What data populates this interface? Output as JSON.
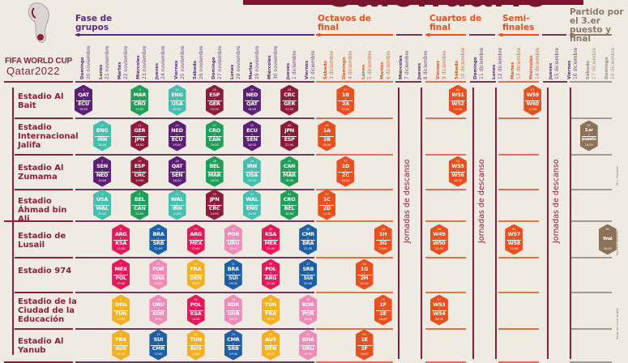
{
  "title": "Calendario",
  "brand": {
    "line1": "FIFA WORLD CUP",
    "line2": "Qatar2022"
  },
  "phases": [
    {
      "label": "Fase de grupos",
      "color": "#5b2a7a"
    },
    {
      "label": "Octavos de final",
      "color": "#e8501f"
    },
    {
      "label": "Cuartos de final",
      "color": "#e8501f"
    },
    {
      "label": "Semi-finales",
      "color": "#e8501f"
    },
    {
      "label": "Partido por el 3.er puesto y final",
      "color": "#8c7a66"
    }
  ],
  "days": [
    {
      "wd": "Domingo",
      "date": "20 noviembre"
    },
    {
      "wd": "Lunes",
      "date": "21 noviembre"
    },
    {
      "wd": "Martes",
      "date": "22 noviembre"
    },
    {
      "wd": "Miércoles",
      "date": "23 noviembre"
    },
    {
      "wd": "Jueves",
      "date": "24 noviembre"
    },
    {
      "wd": "Viernes",
      "date": "25 noviembre"
    },
    {
      "wd": "Sábado",
      "date": "26 noviembre"
    },
    {
      "wd": "Domingo",
      "date": "27 noviembre"
    },
    {
      "wd": "Lunes",
      "date": "28 noviembre"
    },
    {
      "wd": "Martes",
      "date": "29 noviembre"
    },
    {
      "wd": "Miércoles",
      "date": "30 noviembre"
    },
    {
      "wd": "Jueves",
      "date": "1 diciembre"
    },
    {
      "wd": "Viernes",
      "date": "2 diciembre"
    },
    {
      "wd": "Sábado",
      "date": "3 diciembre"
    },
    {
      "wd": "Domingo",
      "date": "4 diciembre"
    },
    {
      "wd": "Lunes",
      "date": "5 diciembre"
    },
    {
      "wd": "Martes",
      "date": "6 diciembre"
    },
    {
      "wd": "Miércoles",
      "date": "7 diciembre"
    },
    {
      "wd": "Jueves",
      "date": "8 diciembre"
    },
    {
      "wd": "Viernes",
      "date": "9 diciembre"
    },
    {
      "wd": "Sábado",
      "date": "10 diciembre"
    },
    {
      "wd": "Domingo",
      "date": "11 diciembre"
    },
    {
      "wd": "Lunes",
      "date": "12 diciembre"
    },
    {
      "wd": "Martes",
      "date": "13 diciembre"
    },
    {
      "wd": "Miércoles",
      "date": "14 diciembre"
    },
    {
      "wd": "Jueves",
      "date": "15 diciembre"
    },
    {
      "wd": "Viernes",
      "date": "16 diciembre"
    },
    {
      "wd": "Sábado",
      "date": "17 diciembre"
    },
    {
      "wd": "Domingo",
      "date": "18 diciembre"
    }
  ],
  "rest_label": "Jornadas de descanso",
  "notes": [
    "W = Ganador",
    "Sujeto a cambios",
    "Horas de inicio locales"
  ],
  "stadiums": [
    {
      "name": "Estadio Al Bait",
      "matches": [
        {
          "n": "1",
          "a": "QAT",
          "b": "ECU",
          "time": "19:00",
          "date": "20 noviembre",
          "color": "#5b1f74"
        },
        {
          "n": "12",
          "a": "MAR",
          "b": "CRO",
          "time": "13:00",
          "date": "23 noviembre",
          "color": "#1fa05a"
        },
        {
          "n": "20",
          "a": "ENG",
          "b": "USA",
          "time": "22:00",
          "date": "25 noviembre",
          "color": "#45bfae"
        },
        {
          "n": "28",
          "a": "ESP",
          "b": "GER",
          "time": "22:00",
          "date": "27 noviembre",
          "color": "#8c1a3a"
        },
        {
          "n": "36",
          "a": "NED",
          "b": "QAT",
          "time": "18:00",
          "date": "29 noviembre",
          "color": "#5b1f74"
        },
        {
          "n": "44",
          "a": "CRC",
          "b": "GER",
          "time": "22:00",
          "date": "1 diciembre",
          "color": "#8c1a3a"
        },
        {
          "n": "52",
          "a": "1B",
          "b": "2A",
          "time": "22:00",
          "date": "4 diciembre",
          "color": "#e8501f"
        },
        {
          "n": "60",
          "a": "W51",
          "b": "W52",
          "time": "22:00",
          "date": "10 diciembre",
          "color": "#e8501f"
        },
        {
          "n": "62",
          "a": "W59",
          "b": "W60",
          "time": "22:00",
          "date": "14 diciembre",
          "color": "#e8501f"
        }
      ]
    },
    {
      "name": "Estadio Internacional Jalifa",
      "matches": [
        {
          "n": "3",
          "a": "ENG",
          "b": "IRN",
          "time": "16:00",
          "date": "21 noviembre",
          "color": "#45bfae"
        },
        {
          "n": "11",
          "a": "GER",
          "b": "JPN",
          "time": "16:00",
          "date": "23 noviembre",
          "color": "#8c1a3a"
        },
        {
          "n": "19",
          "a": "NED",
          "b": "ECU",
          "time": "19:00",
          "date": "25 noviembre",
          "color": "#5b1f74"
        },
        {
          "n": "27",
          "a": "CRO",
          "b": "CAN",
          "time": "19:00",
          "date": "27 noviembre",
          "color": "#1fa05a"
        },
        {
          "n": "35",
          "a": "ECU",
          "b": "SEN",
          "time": "18:00",
          "date": "29 noviembre",
          "color": "#5b1f74"
        },
        {
          "n": "43",
          "a": "JPN",
          "b": "ESP",
          "time": "22:00",
          "date": "1 diciembre",
          "color": "#8c1a3a"
        },
        {
          "n": "49",
          "a": "1A",
          "b": "2B",
          "time": "18:00",
          "date": "3 diciembre",
          "color": "#e8501f"
        },
        {
          "n": "63",
          "a": "3.er",
          "b": "puesto",
          "time": "18:00",
          "date": "17 diciembre",
          "color": "#8c7256"
        }
      ]
    },
    {
      "name": "Estadio Al Zumama",
      "matches": [
        {
          "n": "2",
          "a": "SEN",
          "b": "NED",
          "time": "19:00",
          "date": "21 noviembre",
          "color": "#5b1f74"
        },
        {
          "n": "10",
          "a": "ESP",
          "b": "CRC",
          "time": "19:00",
          "date": "23 noviembre",
          "color": "#8c1a3a"
        },
        {
          "n": "18",
          "a": "QAT",
          "b": "SEN",
          "time": "16:00",
          "date": "25 noviembre",
          "color": "#5b1f74"
        },
        {
          "n": "26",
          "a": "BEL",
          "b": "MAR",
          "time": "16:00",
          "date": "27 noviembre",
          "color": "#1fa05a"
        },
        {
          "n": "34",
          "a": "IRN",
          "b": "USA",
          "time": "22:00",
          "date": "29 noviembre",
          "color": "#45bfae"
        },
        {
          "n": "42",
          "a": "CAN",
          "b": "MAR",
          "time": "18:00",
          "date": "1 diciembre",
          "color": "#1fa05a"
        },
        {
          "n": "51",
          "a": "1D",
          "b": "2C",
          "time": "18:00",
          "date": "4 diciembre",
          "color": "#e8501f"
        },
        {
          "n": "59",
          "a": "W55",
          "b": "W56",
          "time": "18:00",
          "date": "10 diciembre",
          "color": "#e8501f"
        }
      ]
    },
    {
      "name": "Estadio Áhmad bin Ali",
      "matches": [
        {
          "n": "4",
          "a": "USA",
          "b": "WAL",
          "time": "22:00",
          "date": "21 noviembre",
          "color": "#45bfae"
        },
        {
          "n": "9",
          "a": "BEL",
          "b": "CAN",
          "time": "22:00",
          "date": "23 noviembre",
          "color": "#1fa05a"
        },
        {
          "n": "17",
          "a": "WAL",
          "b": "IRN",
          "time": "13:00",
          "date": "25 noviembre",
          "color": "#45bfae"
        },
        {
          "n": "25",
          "a": "JPN",
          "b": "CRC",
          "time": "13:00",
          "date": "27 noviembre",
          "color": "#8c1a3a"
        },
        {
          "n": "33",
          "a": "WAL",
          "b": "ENG",
          "time": "22:00",
          "date": "29 noviembre",
          "color": "#45bfae"
        },
        {
          "n": "41",
          "a": "CRO",
          "b": "BEL",
          "time": "18:00",
          "date": "1 diciembre",
          "color": "#1fa05a"
        },
        {
          "n": "50",
          "a": "1C",
          "b": "2D",
          "time": "22:00",
          "date": "3 diciembre",
          "color": "#e8501f"
        }
      ]
    },
    {
      "name": "Estadio de Lusail",
      "matches": [
        {
          "n": "8",
          "a": "ARG",
          "b": "KSA",
          "time": "13:00",
          "date": "22 noviembre",
          "color": "#e5195a"
        },
        {
          "n": "16",
          "a": "BRA",
          "b": "SRB",
          "time": "22:00",
          "date": "24 noviembre",
          "color": "#1f5fa8"
        },
        {
          "n": "24",
          "a": "ARG",
          "b": "MEX",
          "time": "22:00",
          "date": "26 noviembre",
          "color": "#e5195a"
        },
        {
          "n": "32",
          "a": "POR",
          "b": "URU",
          "time": "22:00",
          "date": "28 noviembre",
          "color": "#ee8bb8"
        },
        {
          "n": "40",
          "a": "KSA",
          "b": "MEX",
          "time": "22:00",
          "date": "30 noviembre",
          "color": "#e5195a"
        },
        {
          "n": "48",
          "a": "CMR",
          "b": "BRA",
          "time": "22:00",
          "date": "2 diciembre",
          "color": "#1f5fa8"
        },
        {
          "n": "56",
          "a": "1H",
          "b": "2G",
          "time": "22:00",
          "date": "6 diciembre",
          "color": "#e8501f"
        },
        {
          "n": "58",
          "a": "W49",
          "b": "W50",
          "time": "22:00",
          "date": "9 diciembre",
          "color": "#e8501f"
        },
        {
          "n": "61",
          "a": "W57",
          "b": "W58",
          "time": "22:00",
          "date": "13 diciembre",
          "color": "#e8501f"
        },
        {
          "n": "64",
          "a": "final",
          "b": "",
          "time": "18:00",
          "date": "18 diciembre",
          "color": "#8c7256"
        }
      ]
    },
    {
      "name": "Estadio 974",
      "matches": [
        {
          "n": "7",
          "a": "MEX",
          "b": "POL",
          "time": "19:00",
          "date": "22 noviembre",
          "color": "#e5195a"
        },
        {
          "n": "15",
          "a": "POR",
          "b": "GHA",
          "time": "19:00",
          "date": "24 noviembre",
          "color": "#ee8bb8"
        },
        {
          "n": "23",
          "a": "FRA",
          "b": "DEN",
          "time": "19:00",
          "date": "26 noviembre",
          "color": "#f5b021"
        },
        {
          "n": "31",
          "a": "BRA",
          "b": "SUI",
          "time": "19:00",
          "date": "28 noviembre",
          "color": "#1f5fa8"
        },
        {
          "n": "39",
          "a": "POL",
          "b": "ARG",
          "time": "22:00",
          "date": "30 noviembre",
          "color": "#e5195a"
        },
        {
          "n": "47",
          "a": "SRB",
          "b": "SUI",
          "time": "22:00",
          "date": "2 diciembre",
          "color": "#1f5fa8"
        },
        {
          "n": "54",
          "a": "1G",
          "b": "2H",
          "time": "22:00",
          "date": "5 diciembre",
          "color": "#e8501f"
        }
      ]
    },
    {
      "name": "Estadio de la Ciudad de la Educación",
      "matches": [
        {
          "n": "6",
          "a": "DEN",
          "b": "TUN",
          "time": "16:00",
          "date": "22 noviembre",
          "color": "#f5b021"
        },
        {
          "n": "14",
          "a": "URU",
          "b": "KOR",
          "time": "16:00",
          "date": "24 noviembre",
          "color": "#ee8bb8"
        },
        {
          "n": "22",
          "a": "POL",
          "b": "KSA",
          "time": "16:00",
          "date": "26 noviembre",
          "color": "#e5195a"
        },
        {
          "n": "30",
          "a": "KOR",
          "b": "GHA",
          "time": "16:00",
          "date": "28 noviembre",
          "color": "#ee8bb8"
        },
        {
          "n": "38",
          "a": "TUN",
          "b": "FRA",
          "time": "18:00",
          "date": "30 noviembre",
          "color": "#f5b021"
        },
        {
          "n": "46",
          "a": "KOR",
          "b": "POR",
          "time": "18:00",
          "date": "2 diciembre",
          "color": "#ee8bb8"
        },
        {
          "n": "55",
          "a": "1F",
          "b": "2E",
          "time": "18:00",
          "date": "6 diciembre",
          "color": "#e8501f"
        },
        {
          "n": "57",
          "a": "W53",
          "b": "W54",
          "time": "18:00",
          "date": "9 diciembre",
          "color": "#e8501f"
        }
      ]
    },
    {
      "name": "Estadio Al Yanub",
      "matches": [
        {
          "n": "5",
          "a": "FRA",
          "b": "AUS",
          "time": "22:00",
          "date": "22 noviembre",
          "color": "#f5b021"
        },
        {
          "n": "13",
          "a": "SUI",
          "b": "CMR",
          "time": "13:00",
          "date": "24 noviembre",
          "color": "#1f5fa8"
        },
        {
          "n": "21",
          "a": "TUN",
          "b": "AUS",
          "time": "13:00",
          "date": "26 noviembre",
          "color": "#f5b021"
        },
        {
          "n": "29",
          "a": "CMR",
          "b": "SRB",
          "time": "13:00",
          "date": "28 noviembre",
          "color": "#1f5fa8"
        },
        {
          "n": "37",
          "a": "AUS",
          "b": "DEN",
          "time": "18:00",
          "date": "30 noviembre",
          "color": "#f5b021"
        },
        {
          "n": "45",
          "a": "GHA",
          "b": "URU",
          "time": "18:00",
          "date": "2 diciembre",
          "color": "#ee8bb8"
        },
        {
          "n": "53",
          "a": "1E",
          "b": "2F",
          "time": "18:00",
          "date": "5 diciembre",
          "color": "#e8501f"
        }
      ]
    }
  ]
}
